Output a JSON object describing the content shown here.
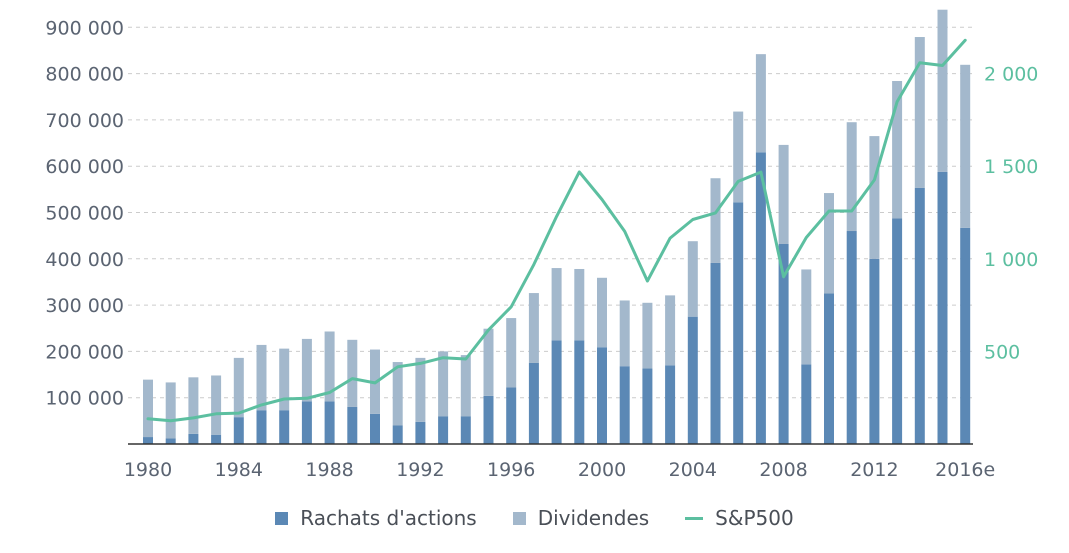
{
  "colors": {
    "buybacks": "#5b88b5",
    "dividends": "#a3b8cc",
    "sp500": "#5cbfa0",
    "grid": "#cccccc",
    "axis_text": "#5b6472",
    "sp_axis_text": "#5cbfa0"
  },
  "legend": {
    "buybacks": "Rachats d'actions",
    "dividends": "Dividendes",
    "sp500": "S&P500"
  },
  "chart_data": {
    "type": "bar",
    "stacked": true,
    "x": [
      1980,
      1981,
      1982,
      1983,
      1984,
      1985,
      1986,
      1987,
      1988,
      1989,
      1990,
      1991,
      1992,
      1993,
      1994,
      1995,
      1996,
      1997,
      1998,
      1999,
      2000,
      2001,
      2002,
      2003,
      2004,
      2005,
      2006,
      2007,
      2008,
      2009,
      2010,
      2011,
      2012,
      2013,
      2014,
      2015,
      2016
    ],
    "x_tick_labels": [
      "1980",
      "1984",
      "1988",
      "1992",
      "1996",
      "2000",
      "2004",
      "2008",
      "2012",
      "2016e"
    ],
    "series": [
      {
        "name": "Rachats d'actions",
        "type": "bar",
        "axis": "left",
        "values": [
          15000,
          12000,
          22000,
          20000,
          58000,
          73000,
          73000,
          92000,
          92000,
          80000,
          65000,
          40000,
          48000,
          60000,
          60000,
          104000,
          122000,
          175000,
          224000,
          224000,
          209000,
          168000,
          163000,
          170000,
          275000,
          391000,
          522000,
          630000,
          432000,
          172000,
          325000,
          460000,
          400000,
          487000,
          553000,
          588000,
          467000
        ]
      },
      {
        "name": "Dividendes",
        "type": "bar",
        "axis": "left",
        "values": [
          124000,
          121000,
          122000,
          128000,
          128000,
          141000,
          133000,
          135000,
          151000,
          145000,
          139000,
          137000,
          138000,
          140000,
          132000,
          145000,
          150000,
          151000,
          156000,
          154000,
          150000,
          142000,
          142000,
          151000,
          163000,
          183000,
          196000,
          212000,
          214000,
          205000,
          217000,
          235000,
          265000,
          297000,
          326000,
          350000,
          352000
        ]
      },
      {
        "name": "S&P500",
        "type": "line",
        "axis": "right",
        "values": [
          136,
          126,
          141,
          163,
          167,
          211,
          243,
          247,
          278,
          353,
          330,
          417,
          435,
          466,
          459,
          616,
          741,
          970,
          1229,
          1469,
          1320,
          1148,
          880,
          1112,
          1212,
          1248,
          1418,
          1468,
          903,
          1115,
          1258,
          1258,
          1426,
          1848,
          2059,
          2044,
          2180
        ]
      }
    ],
    "y_left": {
      "ylim": [
        0,
        960000
      ],
      "ticks": [
        100000,
        200000,
        300000,
        400000,
        500000,
        600000,
        700000,
        800000,
        900000
      ],
      "tick_labels": [
        "100 000",
        "200 000",
        "300 000",
        "400 000",
        "500 000",
        "600 000",
        "700 000",
        "800 000",
        "900 000"
      ]
    },
    "y_right": {
      "ylim": [
        0,
        2350
      ],
      "ticks": [
        500,
        1000,
        1500,
        2000
      ],
      "tick_labels": [
        "500",
        "1 000",
        "1 500",
        "2 000"
      ]
    },
    "grid": true,
    "legend_position": "bottom"
  }
}
